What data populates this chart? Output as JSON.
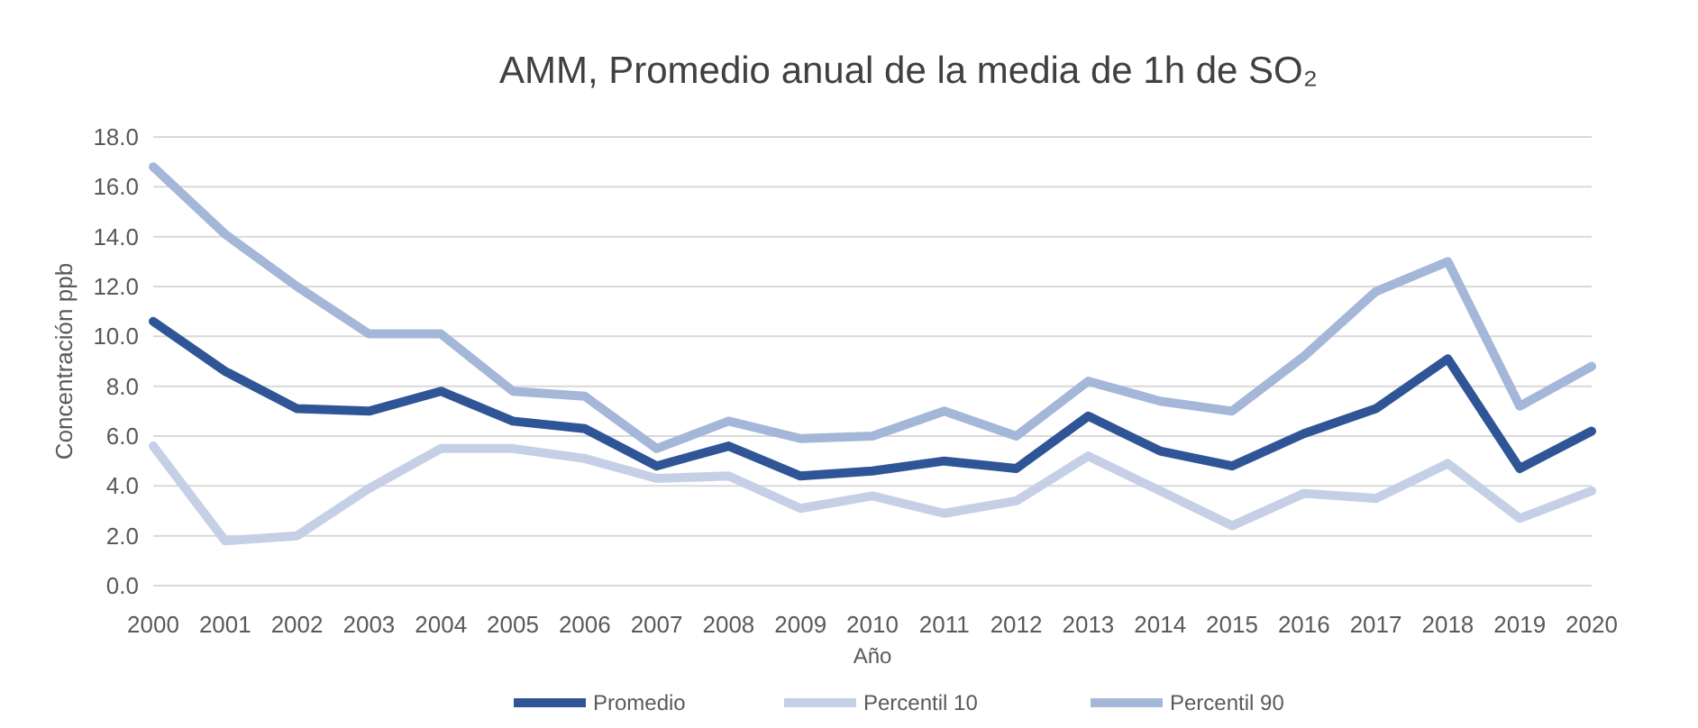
{
  "chart_data": {
    "type": "line",
    "title": "AMM, Promedio anual de la media de 1h de SO₂",
    "xlabel": "Año",
    "ylabel": "Concentración ppb",
    "categories": [
      "2000",
      "2001",
      "2002",
      "2003",
      "2004",
      "2005",
      "2006",
      "2007",
      "2008",
      "2009",
      "2010",
      "2011",
      "2012",
      "2013",
      "2014",
      "2015",
      "2016",
      "2017",
      "2018",
      "2019",
      "2020"
    ],
    "series": [
      {
        "name": "Promedio",
        "color": "#2f5597",
        "values": [
          10.6,
          8.6,
          7.1,
          7.0,
          7.8,
          6.6,
          6.3,
          4.8,
          5.6,
          4.4,
          4.6,
          5.0,
          4.7,
          6.8,
          5.4,
          4.8,
          6.1,
          7.1,
          9.1,
          4.7,
          6.2
        ]
      },
      {
        "name": "Percentil 10",
        "color": "#c5d0e6",
        "values": [
          5.6,
          1.8,
          2.0,
          3.9,
          5.5,
          5.5,
          5.1,
          4.3,
          4.4,
          3.1,
          3.6,
          2.9,
          3.4,
          5.2,
          3.8,
          2.4,
          3.7,
          3.5,
          4.9,
          2.7,
          3.8
        ]
      },
      {
        "name": "Percentil 90",
        "color": "#a5b7d9",
        "values": [
          16.8,
          14.1,
          12.0,
          10.1,
          10.1,
          7.8,
          7.6,
          5.5,
          6.6,
          5.9,
          6.0,
          7.0,
          6.0,
          8.2,
          7.4,
          7.0,
          9.2,
          11.8,
          13.0,
          7.2,
          8.8
        ]
      }
    ],
    "ylim": [
      0,
      18
    ],
    "yticks": [
      {
        "value": 0,
        "label": "0.0"
      },
      {
        "value": 2,
        "label": "2.0"
      },
      {
        "value": 4,
        "label": "4.0"
      },
      {
        "value": 6,
        "label": "6.0"
      },
      {
        "value": 8,
        "label": "8.0"
      },
      {
        "value": 10,
        "label": "10.0"
      },
      {
        "value": 12,
        "label": "12.0"
      },
      {
        "value": 14,
        "label": "14.0"
      },
      {
        "value": 16,
        "label": "16.0"
      },
      {
        "value": 18,
        "label": "18.0"
      }
    ],
    "grid": "y",
    "legend": "bottom",
    "marker": "none",
    "line_style": "solid"
  }
}
